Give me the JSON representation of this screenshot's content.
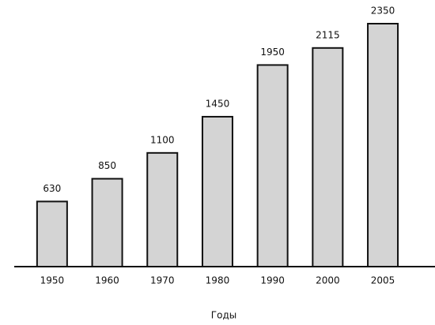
{
  "chart_data": {
    "type": "bar",
    "xlabel": "Годы",
    "categories": [
      "1950",
      "1960",
      "1970",
      "1980",
      "1990",
      "2000",
      "2005"
    ],
    "values": [
      630,
      850,
      1100,
      1450,
      1950,
      2115,
      2350
    ],
    "color": "#d4d4d4"
  }
}
